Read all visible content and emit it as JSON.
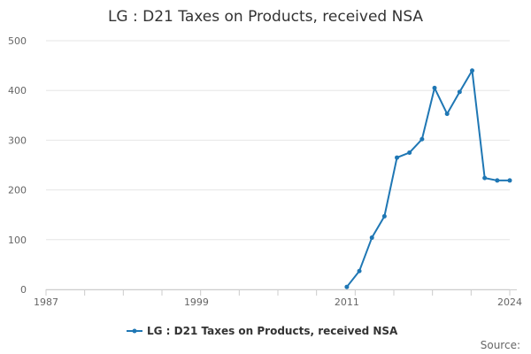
{
  "chart_data": {
    "type": "line",
    "title": "LG : D21 Taxes on Products, received NSA",
    "xlabel": "",
    "ylabel": "",
    "xlim": [
      1987,
      2024
    ],
    "ylim": [
      0,
      500
    ],
    "y_ticks": [
      0,
      100,
      200,
      300,
      400,
      500
    ],
    "x_ticks": [
      1987,
      1999,
      2011,
      2024
    ],
    "grid": true,
    "legend_position": "bottom",
    "series": [
      {
        "name": "LG : D21 Taxes on Products, received NSA",
        "color": "#1f77b4",
        "x": [
          2011,
          2012,
          2013,
          2014,
          2015,
          2016,
          2017,
          2018,
          2019,
          2020,
          2021,
          2022,
          2023,
          2024
        ],
        "y": [
          5,
          37,
          104,
          147,
          265,
          275,
          302,
          405,
          353,
          397,
          440,
          224,
          219,
          219
        ]
      }
    ]
  },
  "footer": {
    "source_label": "Source:"
  }
}
